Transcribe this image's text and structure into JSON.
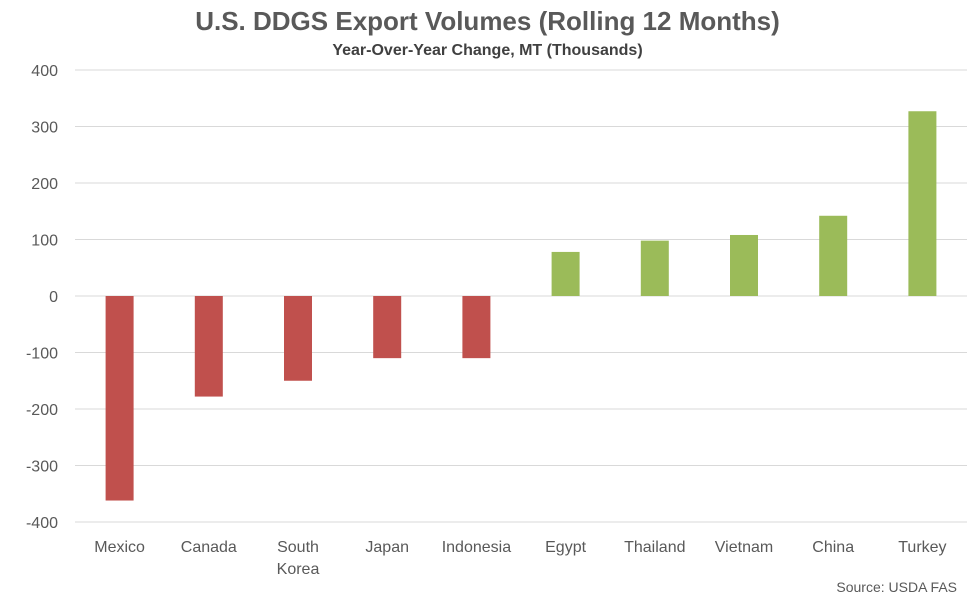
{
  "chart_data": {
    "type": "bar",
    "title": "U.S. DDGS Export Volumes (Rolling 12 Months)",
    "subtitle": "Year-Over-Year Change, MT (Thousands)",
    "categories": [
      [
        "Mexico"
      ],
      [
        "Canada"
      ],
      [
        "South",
        "Korea"
      ],
      [
        "Japan"
      ],
      [
        "Indonesia"
      ],
      [
        "Egypt"
      ],
      [
        "Thailand"
      ],
      [
        "Vietnam"
      ],
      [
        "China"
      ],
      [
        "Turkey"
      ]
    ],
    "values": [
      -362,
      -178,
      -150,
      -110,
      -110,
      78,
      98,
      108,
      142,
      327
    ],
    "ylim": [
      -400,
      400
    ],
    "yticks": [
      400,
      300,
      200,
      100,
      0,
      -100,
      -200,
      -300,
      -400
    ],
    "grid": true,
    "colors": {
      "negative": "#c0504d",
      "positive": "#9bbb59"
    },
    "source": "Source: USDA FAS"
  }
}
